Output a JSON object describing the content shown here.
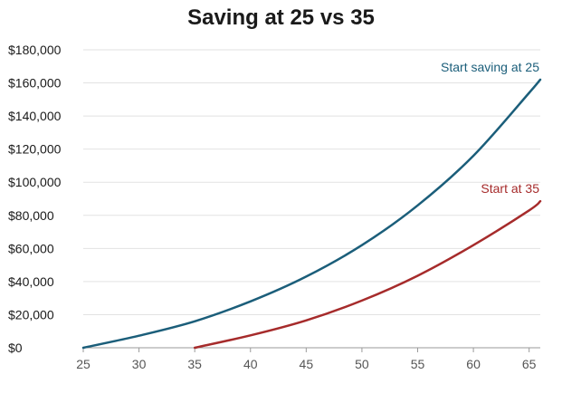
{
  "chart_data": {
    "type": "line",
    "title": "Saving at 25 vs 35",
    "xlabel": "",
    "ylabel": "",
    "xlim": [
      25,
      66
    ],
    "ylim": [
      0,
      180000
    ],
    "x_ticks": [
      25,
      30,
      35,
      40,
      45,
      50,
      55,
      60,
      65
    ],
    "y_ticks": [
      0,
      20000,
      40000,
      60000,
      80000,
      100000,
      120000,
      140000,
      160000,
      180000
    ],
    "y_tick_labels": [
      "$0",
      "$20,000",
      "$40,000",
      "$60,000",
      "$80,000",
      "$100,000",
      "$120,000",
      "$140,000",
      "$160,000",
      "$180,000"
    ],
    "grid": "horizontal",
    "series": [
      {
        "name": "Start saving at 25",
        "color": "#1b5e7a",
        "x": [
          25,
          30,
          35,
          40,
          45,
          50,
          55,
          60,
          65,
          66
        ],
        "y": [
          0,
          7300,
          16000,
          28000,
          43000,
          62000,
          86000,
          116000,
          154000,
          162000
        ]
      },
      {
        "name": "Start at 35",
        "color": "#a62b2b",
        "x": [
          35,
          40,
          45,
          50,
          55,
          60,
          65,
          66
        ],
        "y": [
          0,
          7500,
          16500,
          28500,
          43500,
          62000,
          83000,
          88500
        ]
      }
    ]
  }
}
